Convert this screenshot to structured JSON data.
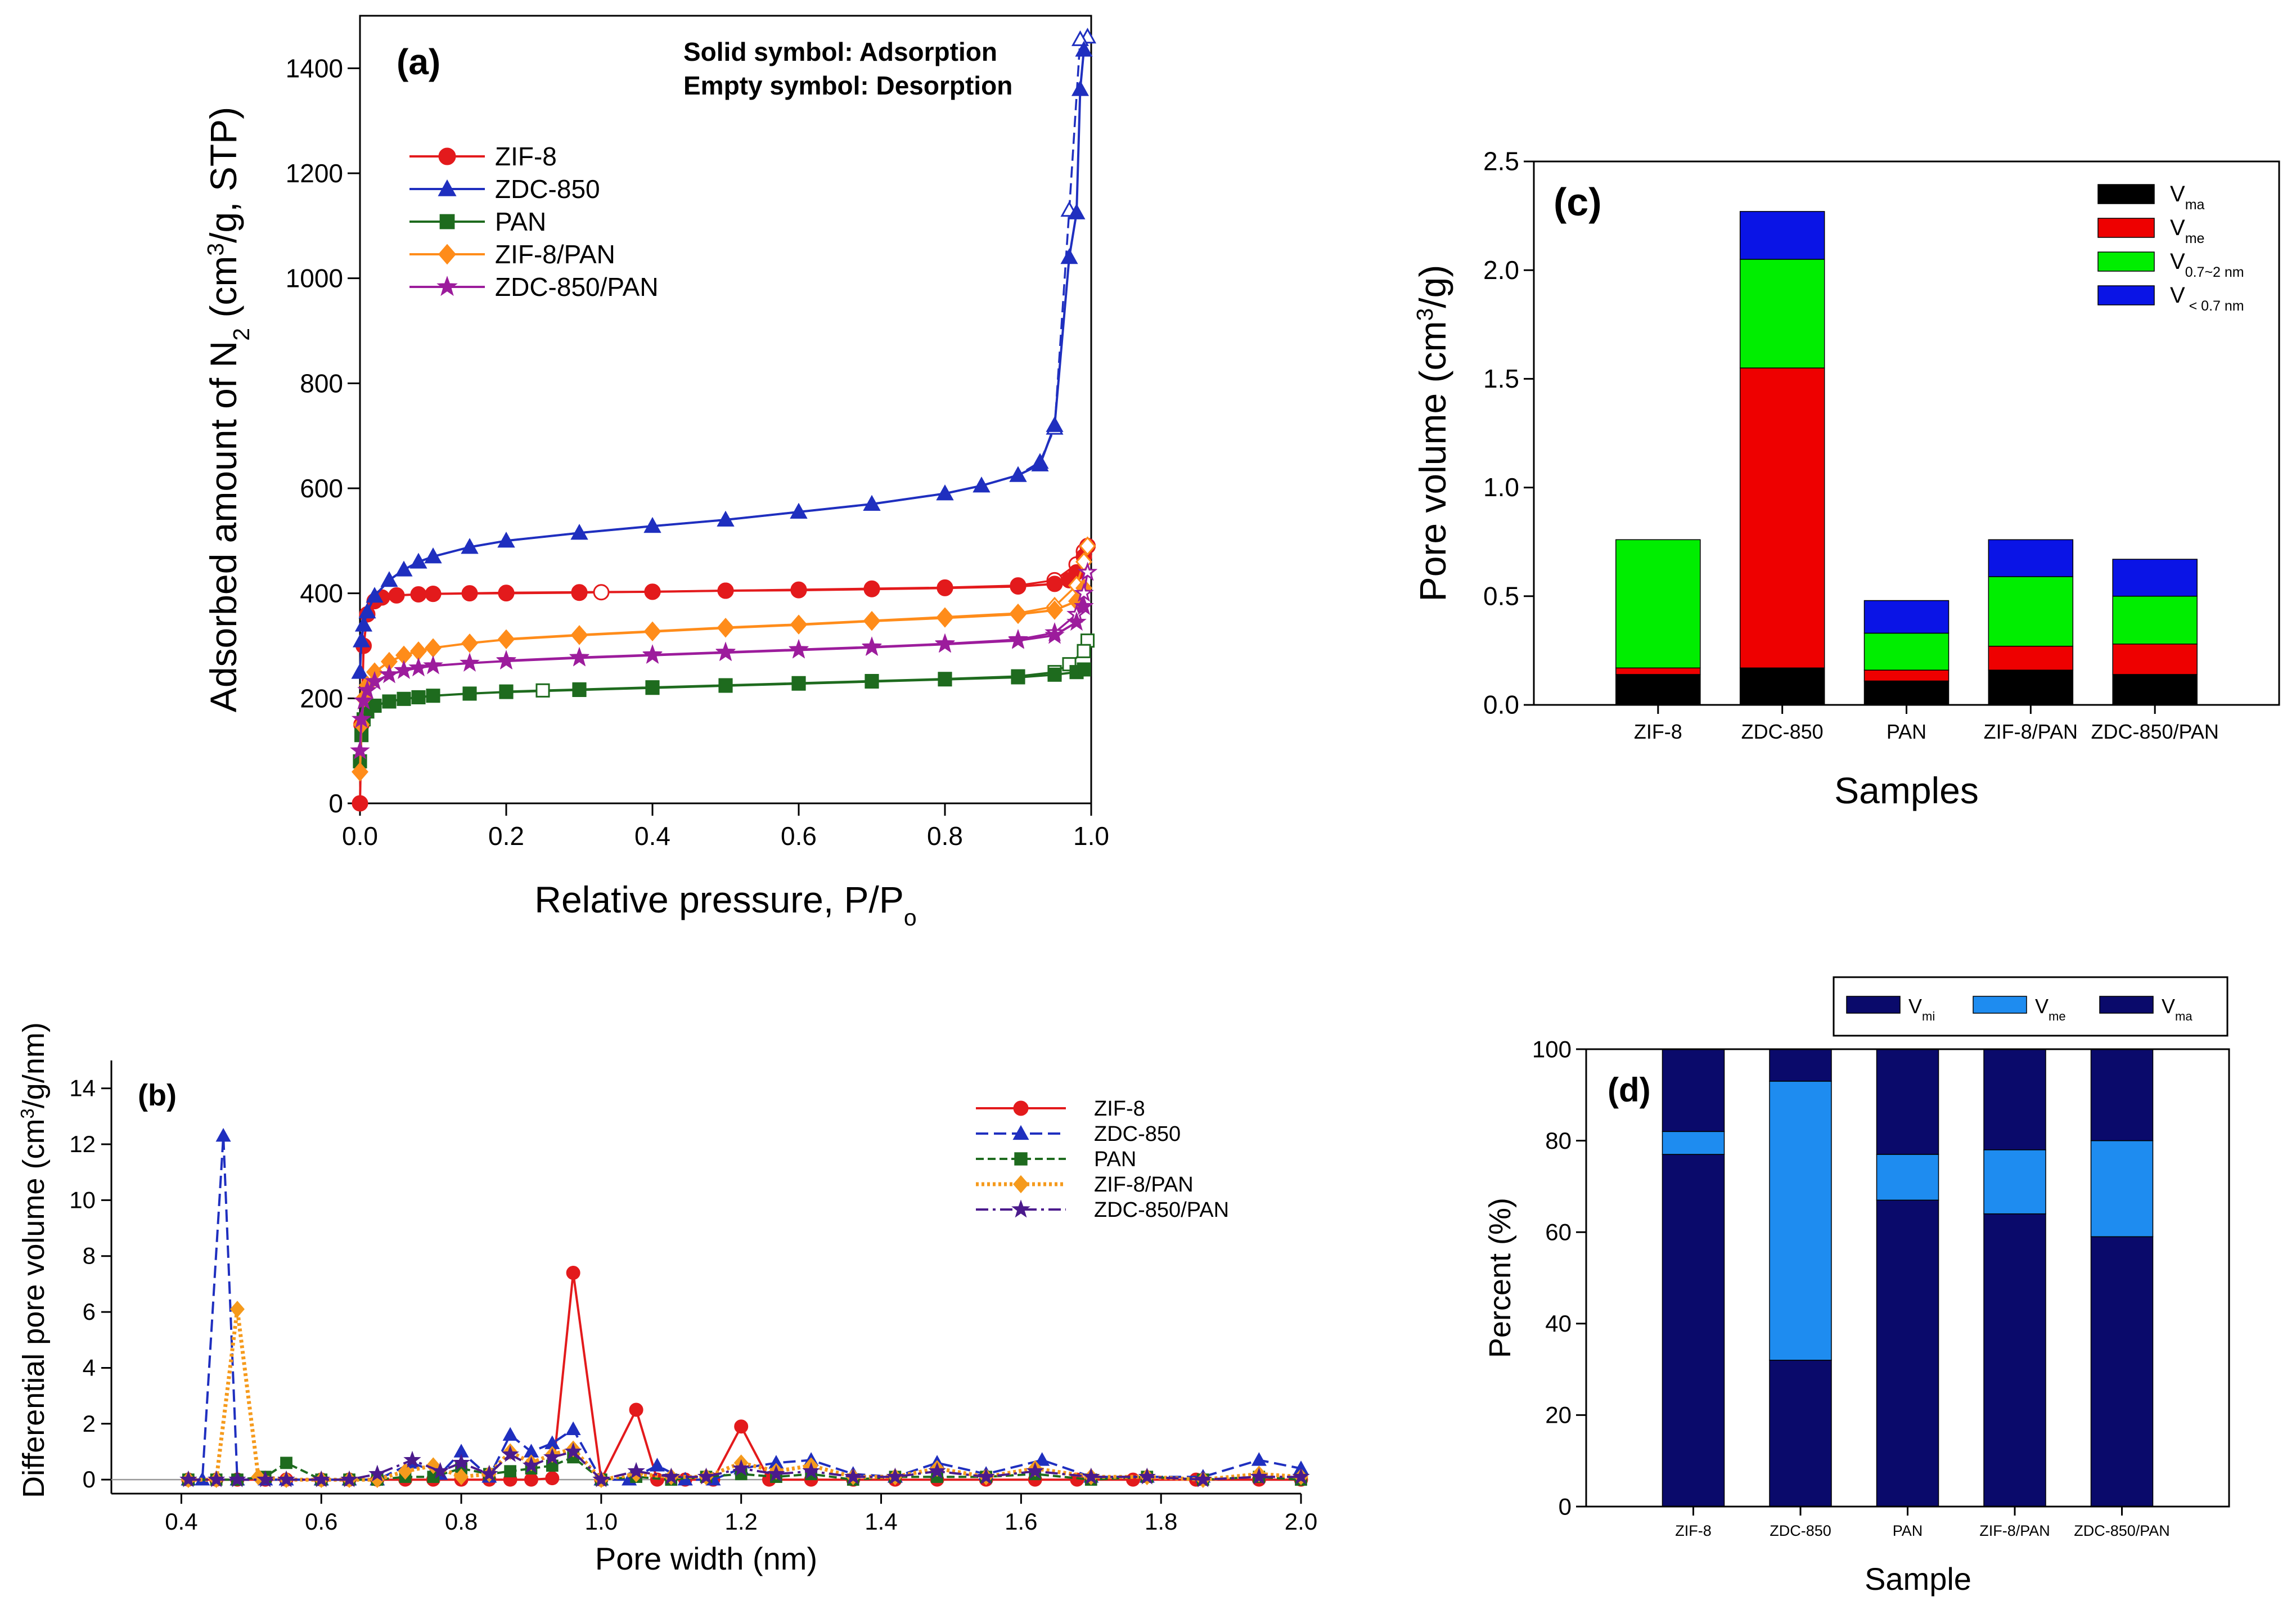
{
  "chart_data": [
    {
      "id": "a",
      "type": "line",
      "panel_label": "(a)",
      "title": "",
      "xlabel": "Relative pressure, P/P",
      "xlabel_sub": "o",
      "ylabel": "Adsorbed amount of N",
      "ylabel_sub": "2",
      "ylabel_tail_pre": " (cm",
      "ylabel_sup": "3",
      "ylabel_tail_post": "/g, STP)",
      "xlim": [
        0,
        1.0
      ],
      "ylim": [
        0,
        1500
      ],
      "xticks": [
        "0.0",
        "0.2",
        "0.4",
        "0.6",
        "0.8",
        "1.0"
      ],
      "yticks": [
        "0",
        "200",
        "400",
        "600",
        "800",
        "1000",
        "1200",
        "1400"
      ],
      "note_line1": "Solid symbol: Adsorption",
      "note_line2": "Empty symbol: Desorption",
      "legend_position": "upper-left",
      "series": [
        {
          "name": "ZIF-8",
          "color": "#e31a1c",
          "marker": "circle",
          "adsorption": {
            "x": [
              0,
              0.002,
              0.005,
              0.01,
              0.02,
              0.03,
              0.05,
              0.08,
              0.1,
              0.15,
              0.2,
              0.3,
              0.4,
              0.5,
              0.6,
              0.7,
              0.8,
              0.9,
              0.95,
              0.97,
              0.98,
              0.99,
              0.995
            ],
            "y": [
              0,
              150,
              300,
              360,
              385,
              392,
              396,
              398,
              399,
              400,
              401,
              402,
              403,
              405,
              406,
              408,
              410,
              413,
              418,
              425,
              440,
              470,
              490
            ]
          },
          "desorption": {
            "x": [
              0.995,
              0.99,
              0.98,
              0.95,
              0.9,
              0.8,
              0.7,
              0.6,
              0.5,
              0.4,
              0.33,
              0.3,
              0.2,
              0.1
            ],
            "y": [
              490,
              480,
              455,
              425,
              415,
              411,
              409,
              407,
              405,
              403,
              402,
              401,
              400,
              399
            ]
          }
        },
        {
          "name": "ZDC-850",
          "color": "#1f2fbf",
          "marker": "triangle",
          "adsorption": {
            "x": [
              0,
              0.002,
              0.005,
              0.01,
              0.02,
              0.04,
              0.06,
              0.08,
              0.1,
              0.15,
              0.2,
              0.3,
              0.4,
              0.5,
              0.6,
              0.7,
              0.8,
              0.85,
              0.9,
              0.93,
              0.95,
              0.97,
              0.98,
              0.985,
              0.99
            ],
            "y": [
              250,
              310,
              340,
              365,
              395,
              425,
              445,
              460,
              470,
              488,
              500,
              515,
              528,
              540,
              555,
              570,
              590,
              605,
              625,
              645,
              720,
              1040,
              1125,
              1360,
              1435
            ]
          },
          "desorption": {
            "x": [
              0.995,
              0.985,
              0.97,
              0.95,
              0.93,
              0.9,
              0.85,
              0.8,
              0.7,
              0.6,
              0.5,
              0.4,
              0.3,
              0.2,
              0.15,
              0.1
            ],
            "y": [
              1460,
              1455,
              1130,
              715,
              650,
              625,
              605,
              590,
              570,
              555,
              540,
              528,
              515,
              500,
              488,
              470
            ]
          }
        },
        {
          "name": "PAN",
          "color": "#1e6b1e",
          "marker": "square",
          "adsorption": {
            "x": [
              0,
              0.002,
              0.005,
              0.01,
              0.02,
              0.04,
              0.06,
              0.08,
              0.1,
              0.15,
              0.2,
              0.3,
              0.4,
              0.5,
              0.6,
              0.7,
              0.8,
              0.9,
              0.95,
              0.98,
              0.99
            ],
            "y": [
              80,
              130,
              160,
              175,
              186,
              194,
              199,
              202,
              205,
              209,
              212,
              216,
              220,
              224,
              228,
              232,
              236,
              240,
              245,
              250,
              255
            ]
          },
          "desorption": {
            "x": [
              0.995,
              0.99,
              0.97,
              0.95,
              0.9,
              0.8,
              0.7,
              0.6,
              0.5,
              0.4,
              0.3,
              0.25,
              0.2
            ],
            "y": [
              310,
              290,
              265,
              250,
              242,
              237,
              233,
              229,
              225,
              221,
              217,
              215,
              213
            ]
          }
        },
        {
          "name": "ZIF-8/PAN",
          "color": "#ff8c1a",
          "marker": "diamond",
          "adsorption": {
            "x": [
              0,
              0.002,
              0.005,
              0.01,
              0.02,
              0.04,
              0.06,
              0.08,
              0.1,
              0.15,
              0.2,
              0.3,
              0.4,
              0.5,
              0.6,
              0.7,
              0.8,
              0.9,
              0.95,
              0.98,
              0.99
            ],
            "y": [
              60,
              150,
              200,
              225,
              250,
              270,
              282,
              290,
              296,
              305,
              312,
              320,
              327,
              334,
              340,
              347,
              353,
              360,
              368,
              385,
              410
            ]
          },
          "desorption": {
            "x": [
              0.995,
              0.99,
              0.98,
              0.95,
              0.9,
              0.8,
              0.7,
              0.6,
              0.5,
              0.4,
              0.3,
              0.2
            ],
            "y": [
              490,
              460,
              415,
              375,
              362,
              355,
              348,
              341,
              335,
              328,
              321,
              313
            ]
          }
        },
        {
          "name": "ZDC-850/PAN",
          "color": "#9c1c9c",
          "marker": "star",
          "adsorption": {
            "x": [
              0,
              0.002,
              0.005,
              0.01,
              0.02,
              0.04,
              0.06,
              0.08,
              0.1,
              0.15,
              0.2,
              0.3,
              0.4,
              0.5,
              0.6,
              0.7,
              0.8,
              0.9,
              0.95,
              0.98,
              0.99
            ],
            "y": [
              100,
              160,
              195,
              215,
              232,
              245,
              253,
              258,
              262,
              267,
              271,
              277,
              282,
              287,
              292,
              297,
              303,
              310,
              320,
              345,
              375
            ]
          },
          "desorption": {
            "x": [
              0.995,
              0.99,
              0.98,
              0.95,
              0.9,
              0.8,
              0.7,
              0.6,
              0.5,
              0.4,
              0.3,
              0.2
            ],
            "y": [
              440,
              400,
              360,
              325,
              312,
              304,
              298,
              293,
              288,
              283,
              278,
              272
            ]
          }
        }
      ]
    },
    {
      "id": "b",
      "type": "line",
      "panel_label": "(b)",
      "title": "",
      "xlabel": "Pore width (nm)",
      "ylabel": "Differential pore volume (cm",
      "ylabel_sup": "3",
      "ylabel_tail": "/g/nm)",
      "xlim": [
        0.3,
        2.0
      ],
      "ylim": [
        -0.5,
        15
      ],
      "xticks": [
        "0.4",
        "0.6",
        "0.8",
        "1.0",
        "1.2",
        "1.4",
        "1.6",
        "1.8",
        "2.0"
      ],
      "yticks": [
        "0",
        "2",
        "4",
        "6",
        "8",
        "10",
        "12",
        "14"
      ],
      "legend_position": "upper-right",
      "series": [
        {
          "name": "ZIF-8",
          "color": "#e31a1c",
          "marker": "circle",
          "dash": "",
          "x": [
            0.41,
            0.45,
            0.48,
            0.52,
            0.55,
            0.6,
            0.64,
            0.68,
            0.72,
            0.76,
            0.8,
            0.84,
            0.87,
            0.9,
            0.93,
            0.96,
            1.0,
            1.05,
            1.08,
            1.12,
            1.16,
            1.2,
            1.24,
            1.3,
            1.36,
            1.42,
            1.48,
            1.55,
            1.62,
            1.68,
            1.76,
            1.85,
            1.94,
            2.0
          ],
          "y": [
            0,
            0,
            0,
            0,
            0,
            0,
            0,
            0,
            0,
            0,
            0,
            0,
            0,
            0,
            0.05,
            7.4,
            0,
            2.5,
            0,
            0,
            0,
            1.9,
            0,
            0,
            0,
            0,
            0,
            0,
            0,
            0,
            0,
            0,
            0,
            0
          ]
        },
        {
          "name": "ZDC-850",
          "color": "#1f2fbf",
          "marker": "triangle",
          "dash": "22 10",
          "x": [
            0.41,
            0.43,
            0.46,
            0.48,
            0.52,
            0.55,
            0.6,
            0.64,
            0.68,
            0.73,
            0.77,
            0.8,
            0.84,
            0.87,
            0.9,
            0.93,
            0.96,
            1.0,
            1.04,
            1.08,
            1.12,
            1.16,
            1.2,
            1.25,
            1.3,
            1.36,
            1.42,
            1.48,
            1.55,
            1.63,
            1.7,
            1.78,
            1.86,
            1.94,
            2.0
          ],
          "y": [
            0,
            0,
            12.3,
            0,
            0,
            0,
            0,
            0,
            0,
            0.6,
            0.2,
            1.0,
            0.1,
            1.6,
            1.0,
            1.3,
            1.8,
            0,
            0,
            0.5,
            0,
            0,
            0.4,
            0.6,
            0.7,
            0.2,
            0.1,
            0.6,
            0.2,
            0.7,
            0.1,
            0.1,
            0.1,
            0.7,
            0.4
          ]
        },
        {
          "name": "PAN",
          "color": "#1e6b1e",
          "marker": "square",
          "dash": "14 7",
          "x": [
            0.41,
            0.45,
            0.48,
            0.52,
            0.55,
            0.6,
            0.64,
            0.68,
            0.72,
            0.76,
            0.8,
            0.84,
            0.87,
            0.9,
            0.93,
            0.96,
            1.0,
            1.05,
            1.1,
            1.15,
            1.2,
            1.25,
            1.3,
            1.36,
            1.42,
            1.48,
            1.55,
            1.62,
            1.7,
            1.78,
            1.86,
            1.94,
            2.0
          ],
          "y": [
            0,
            0,
            0,
            0.1,
            0.6,
            0,
            0,
            0,
            0.1,
            0.1,
            0.4,
            0.2,
            0.3,
            0.4,
            0.5,
            0.8,
            0,
            0.1,
            0,
            0.1,
            0.2,
            0.1,
            0.2,
            0,
            0.1,
            0.1,
            0.1,
            0.2,
            0,
            0.1,
            0,
            0.1,
            0
          ]
        },
        {
          "name": "ZIF-8/PAN",
          "color": "#f59a1c",
          "marker": "diamond",
          "dash": "5 5",
          "x": [
            0.41,
            0.45,
            0.48,
            0.51,
            0.55,
            0.6,
            0.64,
            0.68,
            0.72,
            0.76,
            0.8,
            0.84,
            0.87,
            0.9,
            0.93,
            0.96,
            1.0,
            1.05,
            1.1,
            1.15,
            1.2,
            1.25,
            1.3,
            1.36,
            1.42,
            1.48,
            1.55,
            1.62,
            1.7,
            1.78,
            1.86,
            1.94,
            2.0
          ],
          "y": [
            0,
            0,
            6.1,
            0.1,
            0,
            0,
            0,
            0,
            0.3,
            0.5,
            0.1,
            0.2,
            1.0,
            0.6,
            0.9,
            1.1,
            0,
            0.2,
            0.1,
            0.1,
            0.6,
            0.3,
            0.5,
            0.1,
            0.1,
            0.4,
            0.1,
            0.4,
            0.1,
            0.1,
            0,
            0.2,
            0.1
          ]
        },
        {
          "name": "ZDC-850/PAN",
          "color": "#4b1a8c",
          "marker": "star",
          "dash": "22 8 5 8",
          "x": [
            0.41,
            0.45,
            0.48,
            0.52,
            0.55,
            0.6,
            0.64,
            0.68,
            0.73,
            0.77,
            0.8,
            0.84,
            0.87,
            0.9,
            0.93,
            0.96,
            1.0,
            1.05,
            1.1,
            1.15,
            1.2,
            1.25,
            1.3,
            1.36,
            1.42,
            1.48,
            1.55,
            1.62,
            1.7,
            1.78,
            1.86,
            1.94,
            2.0
          ],
          "y": [
            0,
            0,
            0,
            0,
            0,
            0,
            0,
            0.2,
            0.7,
            0.3,
            0.6,
            0.2,
            0.9,
            0.5,
            0.8,
            1.0,
            0,
            0.3,
            0.1,
            0.1,
            0.4,
            0.2,
            0.3,
            0.1,
            0.1,
            0.3,
            0.1,
            0.3,
            0.1,
            0.1,
            0,
            0.1,
            0.1
          ]
        }
      ]
    },
    {
      "id": "c",
      "type": "bar",
      "stacked": true,
      "panel_label": "(c)",
      "title": "",
      "xlabel": "Samples",
      "ylabel": "Pore volume (cm",
      "ylabel_sup": "3",
      "ylabel_tail": "/g)",
      "ylim": [
        0,
        2.5
      ],
      "yticks": [
        "0.0",
        "0.5",
        "1.0",
        "1.5",
        "2.0",
        "2.5"
      ],
      "categories": [
        "ZIF-8",
        "ZDC-850",
        "PAN",
        "ZIF-8/PAN",
        "ZDC-850/PAN"
      ],
      "legend_position": "upper-right",
      "series": [
        {
          "name": "V",
          "sub": "ma",
          "color": "#000000",
          "values": [
            0.14,
            0.17,
            0.11,
            0.16,
            0.14
          ]
        },
        {
          "name": "V",
          "sub": "me",
          "color": "#ee0000",
          "values": [
            0.03,
            1.38,
            0.05,
            0.11,
            0.14
          ]
        },
        {
          "name": "V",
          "sub": "0.7~2 nm",
          "color": "#00ee00",
          "values": [
            0.59,
            0.5,
            0.17,
            0.32,
            0.22
          ]
        },
        {
          "name": "V",
          "sub": " < 0.7 nm",
          "color": "#0a14e6",
          "values": [
            0.0,
            0.22,
            0.15,
            0.17,
            0.17
          ]
        }
      ]
    },
    {
      "id": "d",
      "type": "bar",
      "stacked": true,
      "panel_label": "(d)",
      "title": "",
      "xlabel": "Sample",
      "ylabel": "Percent (%)",
      "ylim": [
        0,
        100
      ],
      "yticks": [
        "0",
        "20",
        "40",
        "60",
        "80",
        "100"
      ],
      "categories": [
        "ZIF-8",
        "ZDC-850",
        "PAN",
        "ZIF-8/PAN",
        "ZDC-850/PAN"
      ],
      "legend_position": "top",
      "series": [
        {
          "name": "V",
          "sub": "mi",
          "color": "#0a0a6b",
          "values": [
            77,
            32,
            67,
            64,
            59
          ]
        },
        {
          "name": "V",
          "sub": "me",
          "color": "#1e8cf0",
          "values": [
            5,
            61,
            10,
            14,
            21
          ]
        },
        {
          "name": "V",
          "sub": "ma",
          "color": "#0a0a6b",
          "values": [
            18,
            7,
            23,
            22,
            20
          ]
        }
      ]
    }
  ]
}
